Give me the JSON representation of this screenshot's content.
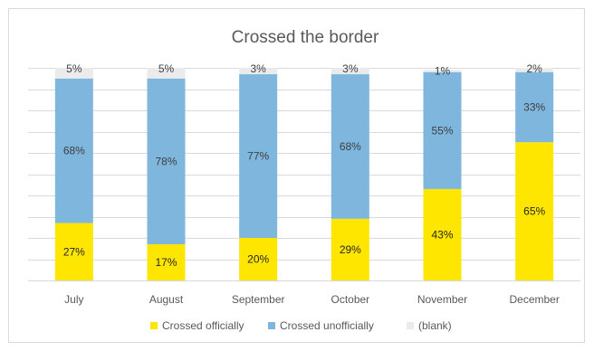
{
  "chart_data": {
    "type": "bar",
    "stacked": true,
    "normalized": true,
    "title": "Crossed the border",
    "categories": [
      "July",
      "August",
      "September",
      "October",
      "November",
      "December"
    ],
    "series": [
      {
        "name": "Crossed officially",
        "color": "#ffe600",
        "values": [
          27,
          17,
          20,
          29,
          43,
          65
        ],
        "labels": [
          "27%",
          "17%",
          "20%",
          "29%",
          "43%",
          "65%"
        ]
      },
      {
        "name": "Crossed unofficially",
        "color": "#7eb6dd",
        "values": [
          68,
          78,
          77,
          68,
          55,
          33
        ],
        "labels": [
          "68%",
          "78%",
          "77%",
          "68%",
          "55%",
          "33%"
        ]
      },
      {
        "name": "(blank)",
        "color": "#ebebeb",
        "values": [
          5,
          5,
          3,
          3,
          1,
          2
        ],
        "labels": [
          "5%",
          "5%",
          "3%",
          "3%",
          "1%",
          "2%"
        ]
      }
    ],
    "ylim": [
      0,
      100
    ],
    "grid": true,
    "legend_position": "bottom",
    "y_axis_labels_visible": false
  }
}
